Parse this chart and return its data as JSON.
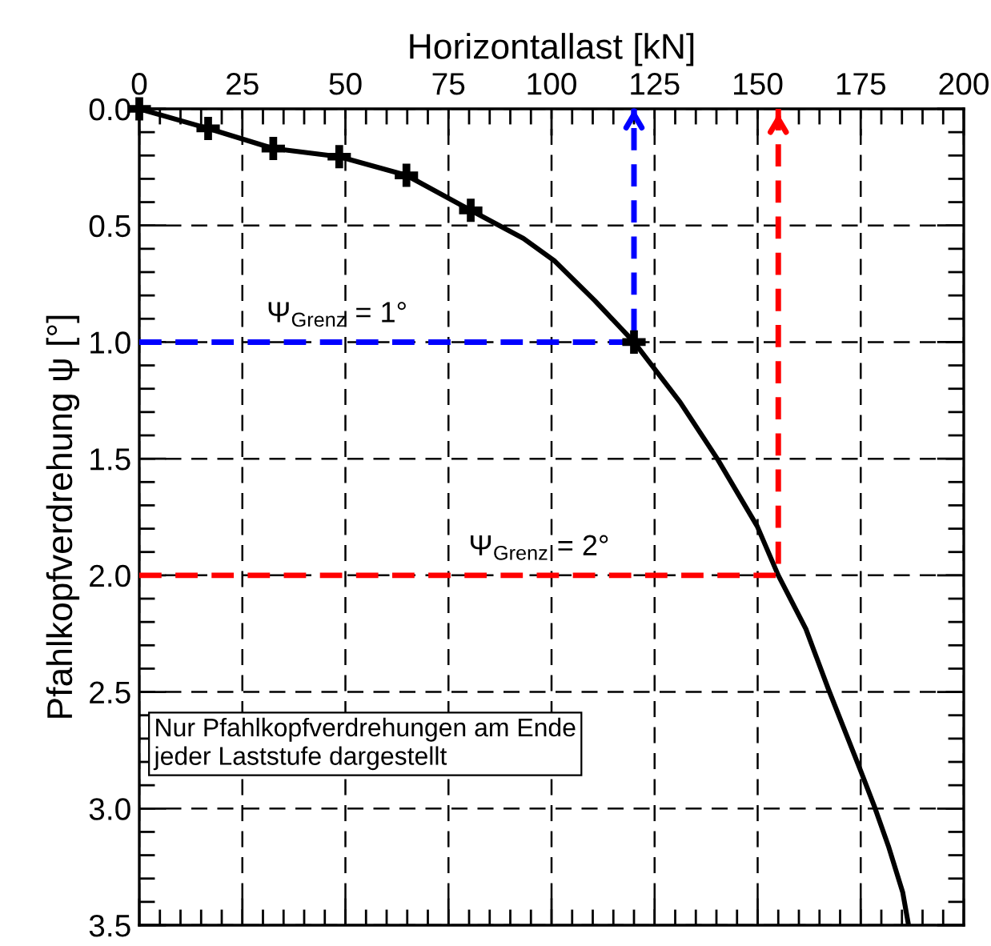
{
  "chart_data": {
    "type": "line",
    "xlabel": "Horizontallast [kN]",
    "ylabel": "Pfahlkopfverdrehung ψ [°]",
    "xlim": [
      0,
      200
    ],
    "xticks": [
      0,
      25,
      50,
      75,
      100,
      125,
      150,
      175,
      200
    ],
    "ylim": [
      3.5,
      0
    ],
    "yticks": [
      {
        "value": 0,
        "label": "0.0"
      },
      0.5,
      {
        "value": 1,
        "label": "1.0"
      },
      1.5,
      {
        "value": 2,
        "label": "2.0"
      },
      2.5,
      {
        "value": 3,
        "label": "3.0"
      },
      3.5
    ],
    "grid": true,
    "series": [
      {
        "color": "#000000",
        "marker": "none",
        "line_style": "solid",
        "x": [
          0,
          16.7,
          32.5,
          48.5,
          64.8,
          80.4,
          93.2,
          100.8,
          110.5,
          120,
          131.2,
          140.2,
          149.9,
          155,
          161.7,
          167.2,
          174.8,
          178.3,
          181.7,
          185.2,
          186.6
        ],
        "values": [
          0,
          0.084,
          0.17,
          0.205,
          0.285,
          0.435,
          0.556,
          0.653,
          0.822,
          1.0,
          1.258,
          1.5,
          1.79,
          2.0,
          2.23,
          2.49,
          2.83,
          2.99,
          3.16,
          3.36,
          3.5
        ]
      },
      {
        "type": "scatter",
        "color": "#000000",
        "marker": "cross",
        "x": [
          0,
          16.7,
          32.5,
          48.5,
          64.8,
          80.4,
          120
        ],
        "values": [
          0,
          0.084,
          0.17,
          0.205,
          0.285,
          0.435,
          1.0
        ]
      },
      {
        "type": "line",
        "color": "#0000ff",
        "marker": "none",
        "line_style": "dashed",
        "x": [
          0,
          120,
          120
        ],
        "values": [
          1.0,
          1.0,
          0
        ]
      },
      {
        "type": "line",
        "color": "#ff0000",
        "marker": "none",
        "line_style": "dashed",
        "x": [
          0,
          155,
          155
        ],
        "values": [
          2.0,
          2.0,
          0
        ]
      }
    ],
    "annotations": [
      {
        "text": "Ψ$_{Grenz}$ = 1°",
        "x": 48,
        "y": 1.0
      },
      {
        "text": "Ψ$_{Grenz}$ = 2°",
        "x": 97,
        "y": 2.0
      },
      "Nur Pfahlkopfverdrehungen am Ende\njeder Laststufe dargestellt"
    ]
  }
}
